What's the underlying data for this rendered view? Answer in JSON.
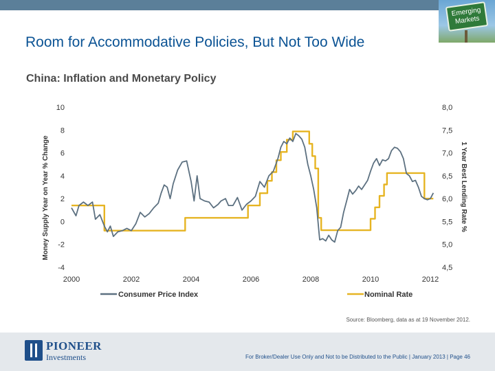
{
  "slide": {
    "title": "Room for Accommodative Policies, But Not Too Wide",
    "badge_text": "Emerging Markets",
    "source": "Source: Bloomberg, data as at 19 November 2012.",
    "footer": "For Broker/Dealer Use Only and Not to be Distributed to the Public  | January 2013  | Page 46",
    "logo_name": "PIONEER",
    "logo_sub": "Investments",
    "colors": {
      "title": "#0b5394",
      "cpi": "#5c7080",
      "rate": "#e6b422",
      "top_bar": "#5b7f99"
    }
  },
  "chart_data": {
    "type": "line",
    "title": "China: Inflation and Monetary Policy",
    "xlabel": "",
    "ylabel_left": "Money Supply Year on Year % Change",
    "ylabel_right": "1 Year Best Lending Rate %",
    "xlim": [
      2000,
      2012
    ],
    "ylim_left": [
      -4,
      10
    ],
    "ylim_right": [
      4.5,
      8.0
    ],
    "x_ticks": [
      "2000",
      "2002",
      "2004",
      "2006",
      "2008",
      "2010",
      "2012"
    ],
    "x_tick_values": [
      2000,
      2002,
      2004,
      2006,
      2008,
      2010,
      2012
    ],
    "y_left_ticks": [
      "-4",
      "-2",
      "0",
      "2",
      "4",
      "6",
      "8",
      "10"
    ],
    "y_left_tick_values": [
      -4,
      -2,
      0,
      2,
      4,
      6,
      8,
      10
    ],
    "y_right_ticks": [
      "4,5",
      "5,0",
      "5,5",
      "6,0",
      "6,5",
      "7,0",
      "7,5",
      "8,0"
    ],
    "y_right_tick_values": [
      4.5,
      5.0,
      5.5,
      6.0,
      6.5,
      7.0,
      7.5,
      8.0
    ],
    "grid": false,
    "legend_position": "bottom",
    "series": [
      {
        "name": "Consumer Price Index",
        "axis": "left",
        "points": [
          [
            2000.0,
            1.2
          ],
          [
            2000.15,
            0.5
          ],
          [
            2000.25,
            1.4
          ],
          [
            2000.4,
            1.7
          ],
          [
            2000.55,
            1.4
          ],
          [
            2000.7,
            1.7
          ],
          [
            2000.8,
            0.2
          ],
          [
            2000.95,
            0.6
          ],
          [
            2001.1,
            -0.4
          ],
          [
            2001.2,
            -0.9
          ],
          [
            2001.3,
            -0.4
          ],
          [
            2001.4,
            -1.3
          ],
          [
            2001.55,
            -0.9
          ],
          [
            2001.7,
            -0.8
          ],
          [
            2001.85,
            -0.6
          ],
          [
            2002.0,
            -0.8
          ],
          [
            2002.15,
            -0.2
          ],
          [
            2002.3,
            0.8
          ],
          [
            2002.45,
            0.4
          ],
          [
            2002.6,
            0.7
          ],
          [
            2002.75,
            1.2
          ],
          [
            2002.9,
            1.6
          ],
          [
            2003.0,
            2.5
          ],
          [
            2003.1,
            3.2
          ],
          [
            2003.2,
            3.0
          ],
          [
            2003.3,
            2.0
          ],
          [
            2003.4,
            3.3
          ],
          [
            2003.55,
            4.5
          ],
          [
            2003.7,
            5.2
          ],
          [
            2003.85,
            5.3
          ],
          [
            2004.0,
            3.5
          ],
          [
            2004.1,
            1.8
          ],
          [
            2004.2,
            4.0
          ],
          [
            2004.3,
            2.0
          ],
          [
            2004.45,
            1.8
          ],
          [
            2004.6,
            1.7
          ],
          [
            2004.75,
            1.2
          ],
          [
            2004.9,
            1.5
          ],
          [
            2005.0,
            1.8
          ],
          [
            2005.15,
            2.0
          ],
          [
            2005.25,
            1.4
          ],
          [
            2005.4,
            1.4
          ],
          [
            2005.55,
            2.1
          ],
          [
            2005.7,
            1.0
          ],
          [
            2005.85,
            1.5
          ],
          [
            2006.0,
            1.8
          ],
          [
            2006.15,
            2.2
          ],
          [
            2006.3,
            3.5
          ],
          [
            2006.45,
            3.0
          ],
          [
            2006.6,
            4.0
          ],
          [
            2006.75,
            4.4
          ],
          [
            2006.9,
            5.5
          ],
          [
            2007.0,
            6.5
          ],
          [
            2007.1,
            7.0
          ],
          [
            2007.2,
            6.8
          ],
          [
            2007.3,
            7.3
          ],
          [
            2007.4,
            7.0
          ],
          [
            2007.5,
            7.7
          ],
          [
            2007.6,
            7.5
          ],
          [
            2007.7,
            7.2
          ],
          [
            2007.8,
            6.5
          ],
          [
            2007.9,
            5.0
          ],
          [
            2008.0,
            4.0
          ],
          [
            2008.1,
            2.8
          ],
          [
            2008.2,
            1.2
          ],
          [
            2008.3,
            -1.6
          ],
          [
            2008.4,
            -1.5
          ],
          [
            2008.5,
            -1.7
          ],
          [
            2008.6,
            -1.2
          ],
          [
            2008.7,
            -1.6
          ],
          [
            2008.8,
            -1.8
          ],
          [
            2008.9,
            -0.8
          ],
          [
            2009.0,
            -0.5
          ],
          [
            2009.1,
            0.8
          ],
          [
            2009.2,
            1.8
          ],
          [
            2009.3,
            2.8
          ],
          [
            2009.4,
            2.4
          ],
          [
            2009.5,
            2.7
          ],
          [
            2009.6,
            3.1
          ],
          [
            2009.7,
            2.8
          ],
          [
            2009.8,
            3.2
          ],
          [
            2009.9,
            3.6
          ],
          [
            2010.0,
            4.4
          ],
          [
            2010.1,
            5.1
          ],
          [
            2010.2,
            5.5
          ],
          [
            2010.3,
            4.9
          ],
          [
            2010.4,
            5.4
          ],
          [
            2010.5,
            5.3
          ],
          [
            2010.6,
            5.5
          ],
          [
            2010.7,
            6.2
          ],
          [
            2010.8,
            6.5
          ],
          [
            2010.9,
            6.4
          ],
          [
            2011.0,
            6.1
          ],
          [
            2011.1,
            5.5
          ],
          [
            2011.2,
            4.2
          ],
          [
            2011.3,
            4.0
          ],
          [
            2011.4,
            3.5
          ],
          [
            2011.5,
            3.6
          ],
          [
            2011.6,
            3.0
          ],
          [
            2011.7,
            2.2
          ],
          [
            2011.8,
            2.0
          ],
          [
            2011.9,
            1.9
          ],
          [
            2012.0,
            2.0
          ],
          [
            2012.1,
            2.5
          ]
        ]
      },
      {
        "name": "Nominal Rate",
        "axis": "right",
        "points": [
          [
            2000.0,
            5.85
          ],
          [
            2001.1,
            5.85
          ],
          [
            2001.1,
            5.3
          ],
          [
            2003.8,
            5.3
          ],
          [
            2003.8,
            5.58
          ],
          [
            2005.9,
            5.58
          ],
          [
            2005.9,
            5.85
          ],
          [
            2006.3,
            5.85
          ],
          [
            2006.3,
            6.12
          ],
          [
            2006.55,
            6.12
          ],
          [
            2006.55,
            6.39
          ],
          [
            2006.7,
            6.39
          ],
          [
            2006.7,
            6.58
          ],
          [
            2006.85,
            6.58
          ],
          [
            2006.85,
            6.84
          ],
          [
            2007.0,
            6.84
          ],
          [
            2007.0,
            7.02
          ],
          [
            2007.2,
            7.02
          ],
          [
            2007.2,
            7.29
          ],
          [
            2007.4,
            7.29
          ],
          [
            2007.4,
            7.47
          ],
          [
            2007.95,
            7.47
          ],
          [
            2007.95,
            7.2
          ],
          [
            2008.05,
            7.2
          ],
          [
            2008.05,
            6.93
          ],
          [
            2008.15,
            6.93
          ],
          [
            2008.15,
            6.66
          ],
          [
            2008.25,
            6.66
          ],
          [
            2008.25,
            5.58
          ],
          [
            2008.35,
            5.58
          ],
          [
            2008.35,
            5.31
          ],
          [
            2010.0,
            5.31
          ],
          [
            2010.0,
            5.56
          ],
          [
            2010.15,
            5.56
          ],
          [
            2010.15,
            5.81
          ],
          [
            2010.3,
            5.81
          ],
          [
            2010.3,
            6.06
          ],
          [
            2010.45,
            6.06
          ],
          [
            2010.45,
            6.31
          ],
          [
            2010.55,
            6.31
          ],
          [
            2010.55,
            6.56
          ],
          [
            2011.3,
            6.56
          ],
          [
            2011.3,
            6.56
          ],
          [
            2011.8,
            6.56
          ],
          [
            2011.8,
            6.0
          ],
          [
            2012.0,
            6.0
          ],
          [
            2012.0,
            6.0
          ],
          [
            2012.1,
            6.0
          ]
        ]
      }
    ]
  }
}
